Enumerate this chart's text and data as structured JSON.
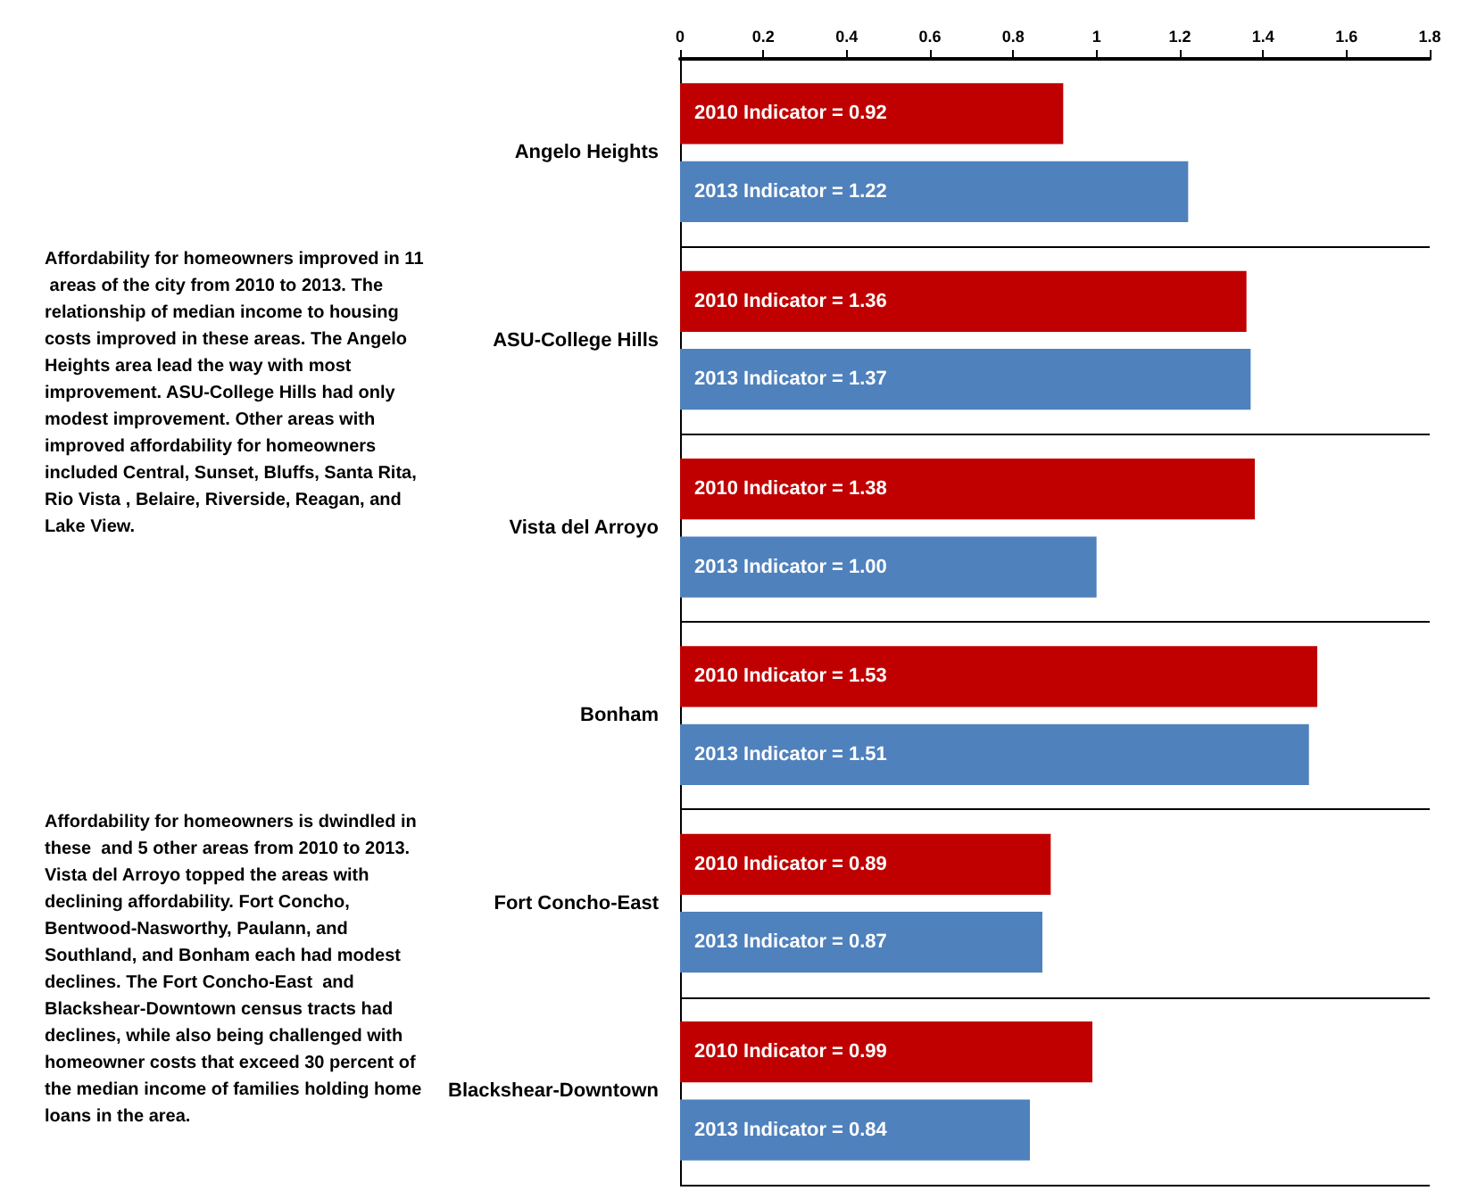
{
  "chart_data": {
    "type": "bar",
    "orientation": "horizontal",
    "categories": [
      "Angelo Heights",
      "ASU-College Hills",
      "Vista del Arroyo",
      "Bonham",
      "Fort Concho-East",
      "Blackshear-Downtown"
    ],
    "series": [
      {
        "color": "#c00000",
        "values": [
          0.92,
          1.36,
          1.38,
          1.53,
          0.89,
          0.99
        ],
        "value_labels": [
          "2010 Indicator = 0.92",
          "2010 Indicator = 1.36",
          "2010 Indicator = 1.38",
          "2010 Indicator = 1.53",
          "2010 Indicator = 0.89",
          "2010 Indicator = 0.99"
        ]
      },
      {
        "color": "#4f81bd",
        "values": [
          1.22,
          1.37,
          1.0,
          1.51,
          0.87,
          0.84
        ],
        "value_labels": [
          "2013 Indicator = 1.22",
          "2013 Indicator = 1.37",
          "2013 Indicator = 1.00",
          "2013 Indicator = 1.51",
          "2013 Indicator = 0.87",
          "2013 Indicator = 0.84"
        ]
      }
    ],
    "xlim": [
      0,
      1.8
    ],
    "xticks": [
      0,
      0.2,
      0.4,
      0.6,
      0.8,
      1,
      1.2,
      1.4,
      1.6,
      1.8
    ],
    "annotations": [
      "Affordability for homeowners improved in 11 areas of the city from 2010 to 2013. The relationship of median income to housing costs improved in these areas. The Angelo Heights area lead the way with most improvement. ASU-College Hills had only modest improvement. Other areas with improved affordability for homeowners included Central, Sunset, Bluffs, Santa Rita, Rio Vista , Belaire, Riverside, Reagan, and Lake View.",
      "Affordability for homeowners is dwindled in these  and 5 other areas from 2010 to 2013. Vista del Arroyo topped the areas with declining affordability. Fort Concho, Bentwood-Nasworthy, Paulann, and Southland, and Bonham each had modest declines. The Fort Concho-East  and Blackshear-Downtown census tracts had declines, while also being challenged with homeowner costs that exceed 30 percent of the median income of families holding home loans in the area."
    ]
  }
}
